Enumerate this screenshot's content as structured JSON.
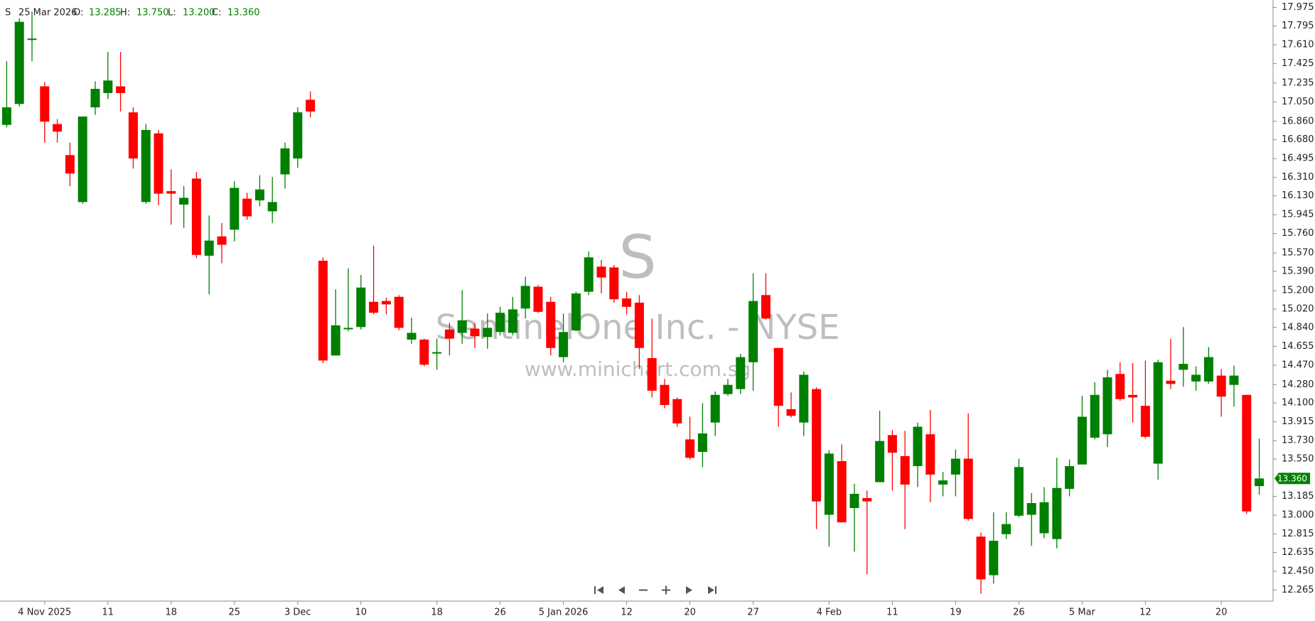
{
  "chart_data": {
    "type": "candlestick",
    "symbol": "S",
    "date": "25 Mar 2026",
    "ohlc_labels": [
      "O:",
      "H:",
      "L:",
      "C:"
    ],
    "ohlc_value_labels": [
      "13.285",
      "13.750",
      "13.200",
      "13.360"
    ],
    "watermark": [
      "S",
      "SentinelOne Inc. - NYSE",
      "www.minichart.com.sg"
    ],
    "up_color": "#008000",
    "down_color": "#ff0000",
    "categories": [
      null,
      null,
      null,
      "4 Nov 2025",
      null,
      null,
      null,
      null,
      "11",
      null,
      null,
      null,
      null,
      "18",
      null,
      null,
      null,
      null,
      "25",
      null,
      null,
      null,
      null,
      "3 Dec",
      null,
      null,
      null,
      null,
      "10",
      null,
      null,
      null,
      null,
      null,
      "18",
      null,
      null,
      null,
      null,
      "26",
      null,
      null,
      null,
      null,
      "5 Jan 2026",
      null,
      null,
      null,
      null,
      "12",
      null,
      null,
      null,
      null,
      "20",
      null,
      null,
      null,
      null,
      "27",
      null,
      null,
      null,
      null,
      null,
      "4 Feb",
      null,
      null,
      null,
      null,
      "11",
      null,
      null,
      null,
      null,
      "19",
      null,
      null,
      null,
      null,
      "26",
      null,
      null,
      null,
      null,
      "5 Mar",
      null,
      null,
      null,
      null,
      "12",
      null,
      null,
      null,
      null,
      null,
      "20",
      null,
      null,
      null
    ],
    "open": [
      16.825,
      17.03,
      17.667,
      17.203,
      16.833,
      16.529,
      16.069,
      16.997,
      17.137,
      17.203,
      16.948,
      16.069,
      16.742,
      16.176,
      16.044,
      16.299,
      15.543,
      15.732,
      15.798,
      16.102,
      16.085,
      15.978,
      16.34,
      16.496,
      17.071,
      15.494,
      14.565,
      14.828,
      14.844,
      15.091,
      15.099,
      15.14,
      14.721,
      14.721,
      14.594,
      14.82,
      14.787,
      14.828,
      14.746,
      14.795,
      14.787,
      15.025,
      15.239,
      15.091,
      14.549,
      14.811,
      15.19,
      15.436,
      15.428,
      15.124,
      15.083,
      14.54,
      14.277,
      14.138,
      13.743,
      13.62,
      13.908,
      14.187,
      14.236,
      14.499,
      15.157,
      14.639,
      14.039,
      13.908,
      14.236,
      13.004,
      13.53,
      13.07,
      13.168,
      13.324,
      13.785,
      13.579,
      13.481,
      13.793,
      13.3,
      13.398,
      13.554,
      12.79,
      12.412,
      12.814,
      12.995,
      13.004,
      12.823,
      12.766,
      13.258,
      13.497,
      13.76,
      13.793,
      14.384,
      14.179,
      14.072,
      13.505,
      14.318,
      14.425,
      14.31,
      14.31,
      14.368,
      14.277,
      14.179,
      13.285
    ],
    "high": [
      17.449,
      17.868,
      17.934,
      17.244,
      16.882,
      16.652,
      16.907,
      17.252,
      17.54,
      17.54,
      16.997,
      16.833,
      16.775,
      16.389,
      16.225,
      16.364,
      15.937,
      15.863,
      16.274,
      16.159,
      16.332,
      16.315,
      16.652,
      16.997,
      17.153,
      15.527,
      15.214,
      15.42,
      15.354,
      15.641,
      15.132,
      15.157,
      14.935,
      14.73,
      14.73,
      14.885,
      15.206,
      14.885,
      14.976,
      15.042,
      15.14,
      15.337,
      15.255,
      15.14,
      14.976,
      15.19,
      15.584,
      15.502,
      15.452,
      15.19,
      15.157,
      14.926,
      14.335,
      14.154,
      13.965,
      14.097,
      14.212,
      14.335,
      14.581,
      15.37,
      15.37,
      14.639,
      14.203,
      14.409,
      14.253,
      13.637,
      13.694,
      13.308,
      13.242,
      14.023,
      13.834,
      13.826,
      13.908,
      14.031,
      13.423,
      13.645,
      13.998,
      12.831,
      13.028,
      13.028,
      13.554,
      13.217,
      13.275,
      13.563,
      13.546,
      14.17,
      14.302,
      14.425,
      14.499,
      14.491,
      14.516,
      14.524,
      14.729,
      14.844,
      14.458,
      14.647,
      14.433,
      14.466,
      14.179,
      13.75
    ],
    "low": [
      16.8,
      17.005,
      17.449,
      16.652,
      16.652,
      16.225,
      16.052,
      16.923,
      17.079,
      16.956,
      16.397,
      16.052,
      16.036,
      15.847,
      15.814,
      15.518,
      15.165,
      15.469,
      15.683,
      15.896,
      16.028,
      15.863,
      16.2,
      16.405,
      16.899,
      14.491,
      14.565,
      14.803,
      14.82,
      14.968,
      14.968,
      14.811,
      14.68,
      14.458,
      14.425,
      14.565,
      14.68,
      14.639,
      14.631,
      14.762,
      14.762,
      14.927,
      14.984,
      14.565,
      14.499,
      14.803,
      15.157,
      15.173,
      15.083,
      14.968,
      14.434,
      14.154,
      14.047,
      13.866,
      13.546,
      13.472,
      13.776,
      14.17,
      14.187,
      14.22,
      14.919,
      13.866,
      13.957,
      13.776,
      12.864,
      12.692,
      12.93,
      12.643,
      12.42,
      13.324,
      13.242,
      12.864,
      13.275,
      13.127,
      13.185,
      13.185,
      12.946,
      12.231,
      12.33,
      12.766,
      12.979,
      12.7,
      12.774,
      12.675,
      13.185,
      13.497,
      13.743,
      13.669,
      14.121,
      13.908,
      13.752,
      13.349,
      14.236,
      14.261,
      14.22,
      14.286,
      13.965,
      14.064,
      13.012,
      13.2
    ],
    "close": [
      16.997,
      17.835,
      17.671,
      16.857,
      16.759,
      16.348,
      16.907,
      17.178,
      17.26,
      17.137,
      16.496,
      16.775,
      16.151,
      16.151,
      16.11,
      15.551,
      15.691,
      15.65,
      16.208,
      15.929,
      16.192,
      16.069,
      16.595,
      16.948,
      16.956,
      14.516,
      14.861,
      14.836,
      15.231,
      14.984,
      15.066,
      14.836,
      14.787,
      14.475,
      14.598,
      14.73,
      14.91,
      14.754,
      14.836,
      14.984,
      15.017,
      15.247,
      14.993,
      14.639,
      14.795,
      15.173,
      15.527,
      15.329,
      15.116,
      15.042,
      14.639,
      14.22,
      14.08,
      13.899,
      13.562,
      13.801,
      14.179,
      14.277,
      14.549,
      15.099,
      14.927,
      14.072,
      13.974,
      14.376,
      13.135,
      13.604,
      12.93,
      13.209,
      13.135,
      13.727,
      13.612,
      13.3,
      13.867,
      13.398,
      13.341,
      13.554,
      12.963,
      12.371,
      12.749,
      12.913,
      13.472,
      13.119,
      13.127,
      13.267,
      13.481,
      13.965,
      14.179,
      14.351,
      14.138,
      14.154,
      13.768,
      14.499,
      14.286,
      14.483,
      14.376,
      14.549,
      14.162,
      14.368,
      13.037,
      13.36
    ],
    "ylim": [
      12.158,
      18.049
    ],
    "yticks": [
      17.975,
      17.795,
      {
        "value": 17.61,
        "label": "17.610"
      },
      17.425,
      17.235,
      {
        "value": 17.05,
        "label": "17.050"
      },
      {
        "value": 16.86,
        "label": "16.860"
      },
      {
        "value": 16.68,
        "label": "16.680"
      },
      16.495,
      {
        "value": 16.31,
        "label": "16.310"
      },
      {
        "value": 16.13,
        "label": "16.130"
      },
      15.945,
      {
        "value": 15.76,
        "label": "15.760"
      },
      {
        "value": 15.57,
        "label": "15.570"
      },
      {
        "value": 15.39,
        "label": "15.390"
      },
      {
        "value": 15.2,
        "label": "15.200"
      },
      {
        "value": 15.02,
        "label": "15.020"
      },
      {
        "value": 14.84,
        "label": "14.840"
      },
      14.655,
      {
        "value": 14.47,
        "label": "14.470"
      },
      {
        "value": 14.28,
        "label": "14.280"
      },
      {
        "value": 14.1,
        "label": "14.100"
      },
      13.915,
      {
        "value": 13.73,
        "label": "13.730"
      },
      {
        "value": 13.55,
        "label": "13.550"
      },
      13.185,
      {
        "value": 13.0,
        "label": "13.000"
      },
      12.815,
      12.635,
      {
        "value": 12.45,
        "label": "12.450"
      },
      12.265
    ],
    "grid": false
  }
}
